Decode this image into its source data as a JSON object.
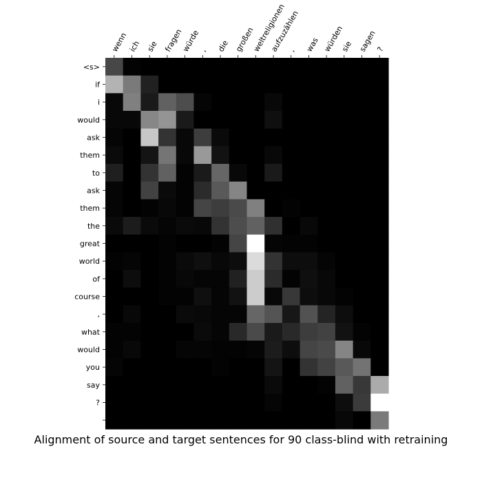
{
  "chart_data": {
    "type": "heatmap",
    "title": "Alignment of source and target sentences for 90 class-blind with retraining",
    "colormap": "gray",
    "value_range": [
      0,
      1
    ],
    "x_ticks_position": "top",
    "x_labels": [
      "wenn",
      "ich",
      "sie",
      "fragen",
      "würde",
      ",",
      "die",
      "großen",
      "weltreligionen",
      "aufzuzählen",
      ",",
      "was",
      "würden",
      "sie",
      "sagen",
      "?"
    ],
    "y_labels": [
      "<s>",
      "if",
      "i",
      "would",
      "ask",
      "them",
      "to",
      "ask",
      "them",
      "the",
      "great",
      "world",
      "of",
      "course",
      ",",
      "what",
      "would",
      "you",
      "say",
      "?",
      ""
    ],
    "matrix": [
      [
        0.28,
        0.01,
        0.0,
        0.0,
        0.0,
        0.0,
        0.0,
        0.0,
        0.0,
        0.0,
        0.0,
        0.0,
        0.0,
        0.0,
        0.0,
        0.0
      ],
      [
        0.7,
        0.48,
        0.13,
        0.0,
        0.0,
        0.0,
        0.0,
        0.0,
        0.0,
        0.0,
        0.0,
        0.0,
        0.0,
        0.0,
        0.0,
        0.0
      ],
      [
        0.03,
        0.5,
        0.1,
        0.38,
        0.3,
        0.02,
        0.0,
        0.0,
        0.0,
        0.03,
        0.0,
        0.0,
        0.0,
        0.0,
        0.0,
        0.0
      ],
      [
        0.03,
        0.03,
        0.53,
        0.58,
        0.1,
        0.0,
        0.0,
        0.0,
        0.0,
        0.06,
        0.0,
        0.0,
        0.0,
        0.0,
        0.0,
        0.0
      ],
      [
        0.02,
        0.0,
        0.78,
        0.2,
        0.03,
        0.24,
        0.04,
        0.0,
        0.0,
        0.0,
        0.0,
        0.0,
        0.0,
        0.0,
        0.0,
        0.0
      ],
      [
        0.04,
        0.0,
        0.08,
        0.46,
        0.03,
        0.6,
        0.07,
        0.0,
        0.0,
        0.03,
        0.0,
        0.0,
        0.0,
        0.0,
        0.0,
        0.0
      ],
      [
        0.12,
        0.0,
        0.2,
        0.38,
        0.01,
        0.1,
        0.4,
        0.03,
        0.0,
        0.1,
        0.0,
        0.0,
        0.0,
        0.0,
        0.0,
        0.0
      ],
      [
        0.02,
        0.0,
        0.26,
        0.04,
        0.01,
        0.17,
        0.35,
        0.52,
        0.0,
        0.0,
        0.0,
        0.0,
        0.0,
        0.0,
        0.0,
        0.0
      ],
      [
        0.02,
        0.0,
        0.01,
        0.03,
        0.01,
        0.27,
        0.24,
        0.29,
        0.5,
        0.0,
        0.01,
        0.0,
        0.0,
        0.0,
        0.0,
        0.0
      ],
      [
        0.04,
        0.11,
        0.04,
        0.02,
        0.04,
        0.03,
        0.2,
        0.3,
        0.38,
        0.19,
        0.0,
        0.03,
        0.0,
        0.0,
        0.0,
        0.0
      ],
      [
        0.0,
        0.0,
        0.0,
        0.01,
        0.0,
        0.0,
        0.01,
        0.27,
        1.0,
        0.02,
        0.01,
        0.01,
        0.0,
        0.0,
        0.0,
        0.0
      ],
      [
        0.01,
        0.02,
        0.0,
        0.01,
        0.04,
        0.06,
        0.03,
        0.05,
        0.86,
        0.2,
        0.05,
        0.05,
        0.02,
        0.0,
        0.0,
        0.0
      ],
      [
        0.0,
        0.05,
        0.0,
        0.01,
        0.03,
        0.02,
        0.02,
        0.13,
        0.8,
        0.17,
        0.01,
        0.06,
        0.03,
        0.0,
        0.0,
        0.0
      ],
      [
        0.0,
        0.0,
        0.0,
        0.01,
        0.01,
        0.06,
        0.02,
        0.07,
        0.8,
        0.03,
        0.22,
        0.05,
        0.03,
        0.01,
        0.0,
        0.0
      ],
      [
        0.0,
        0.03,
        0.0,
        0.0,
        0.04,
        0.03,
        0.02,
        0.02,
        0.4,
        0.33,
        0.09,
        0.32,
        0.14,
        0.05,
        0.0,
        0.0
      ],
      [
        0.01,
        0.01,
        0.0,
        0.0,
        0.0,
        0.04,
        0.02,
        0.16,
        0.29,
        0.1,
        0.16,
        0.24,
        0.26,
        0.07,
        0.01,
        0.0
      ],
      [
        0.01,
        0.03,
        0.0,
        0.0,
        0.02,
        0.02,
        0.01,
        0.01,
        0.02,
        0.11,
        0.05,
        0.27,
        0.29,
        0.52,
        0.03,
        0.0
      ],
      [
        0.02,
        0.0,
        0.0,
        0.0,
        0.0,
        0.0,
        0.01,
        0.0,
        0.0,
        0.08,
        0.0,
        0.2,
        0.26,
        0.35,
        0.45,
        0.0
      ],
      [
        0.0,
        0.0,
        0.0,
        0.0,
        0.0,
        0.0,
        0.0,
        0.0,
        0.0,
        0.04,
        0.0,
        0.0,
        0.01,
        0.38,
        0.22,
        0.67
      ],
      [
        0.0,
        0.0,
        0.0,
        0.0,
        0.0,
        0.0,
        0.0,
        0.0,
        0.0,
        0.02,
        0.0,
        0.0,
        0.0,
        0.05,
        0.23,
        1.0
      ],
      [
        0.0,
        0.0,
        0.0,
        0.0,
        0.0,
        0.0,
        0.0,
        0.0,
        0.0,
        0.0,
        0.0,
        0.0,
        0.0,
        0.03,
        0.0,
        0.48
      ]
    ]
  }
}
